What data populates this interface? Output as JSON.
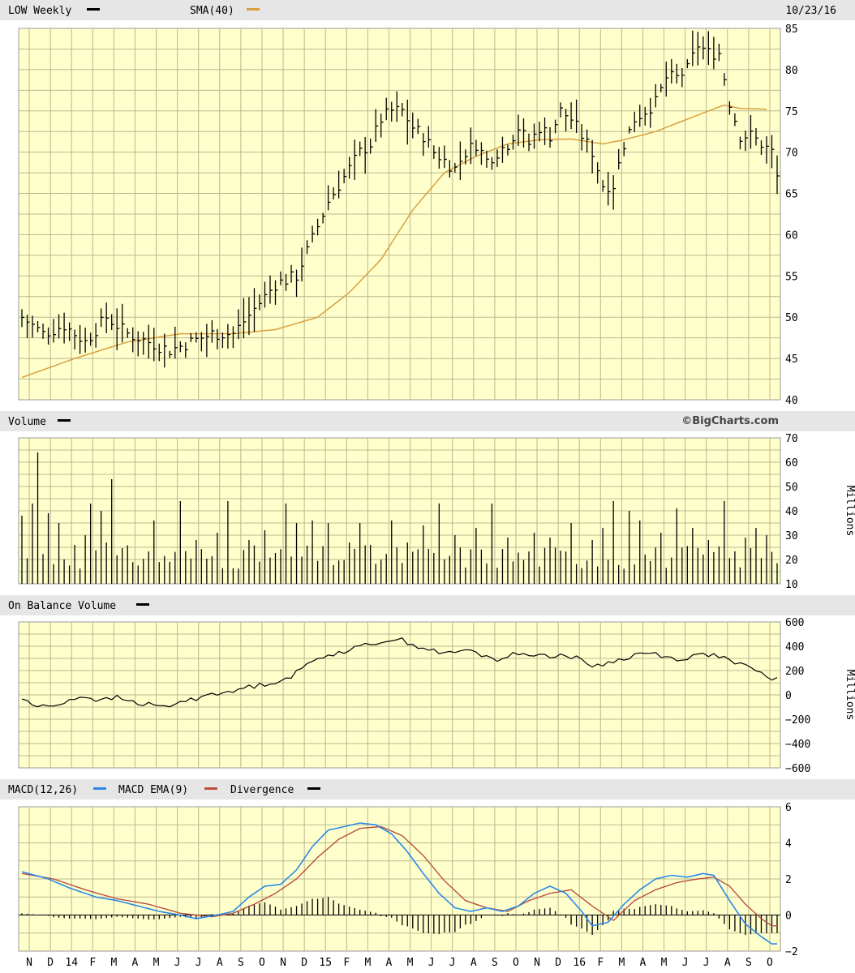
{
  "colors": {
    "panel_bg": "#ffffcc",
    "grid": "#b8b890",
    "header_bg": "#e6e6e6",
    "price": "#000000",
    "sma": "#d8a040",
    "macd": "#2a8ae6",
    "macd_ema": "#b85040",
    "divergence": "#000000"
  },
  "header": {
    "price_title": "LOW Weekly",
    "sma_label": "SMA(40)",
    "date": "10/23/16",
    "volume_title": "Volume",
    "brand": "©BigCharts.com",
    "obv_title": "On Balance Volume",
    "macd_label": "MACD(12,26)",
    "macd_ema_label": "MACD EMA(9)",
    "divergence_label": "Divergence",
    "volume_unit": "Millions",
    "obv_unit": "Millions"
  },
  "chart_data": [
    {
      "type": "line",
      "title": "LOW Weekly",
      "series_names": [
        "LOW Weekly",
        "SMA(40)"
      ],
      "ylim": [
        40,
        85
      ],
      "yticks": [
        "85",
        "80",
        "75",
        "70",
        "65",
        "60",
        "55",
        "50",
        "45",
        "40"
      ],
      "y_axis_side": "right",
      "grid": true,
      "x_month_labels": [
        "N",
        "D",
        "14",
        "F",
        "M",
        "A",
        "M",
        "J",
        "J",
        "A",
        "S",
        "O",
        "N",
        "D",
        "15",
        "F",
        "M",
        "A",
        "M",
        "J",
        "J",
        "A",
        "S",
        "O",
        "N",
        "D",
        "16",
        "F",
        "M",
        "A",
        "M",
        "J",
        "J",
        "A",
        "S",
        "O"
      ],
      "price_anchors": [
        [
          0,
          50
        ],
        [
          4,
          48
        ],
        [
          8,
          49
        ],
        [
          12,
          47
        ],
        [
          16,
          50
        ],
        [
          20,
          48
        ],
        [
          24,
          47
        ],
        [
          28,
          46
        ],
        [
          32,
          47
        ],
        [
          36,
          48
        ],
        [
          40,
          48
        ],
        [
          44,
          51
        ],
        [
          48,
          54
        ],
        [
          52,
          55
        ],
        [
          54,
          58
        ],
        [
          58,
          64
        ],
        [
          62,
          68
        ],
        [
          64,
          70
        ],
        [
          66,
          71
        ],
        [
          68,
          74
        ],
        [
          70,
          75
        ],
        [
          72,
          75
        ],
        [
          74,
          73
        ],
        [
          76,
          72
        ],
        [
          78,
          70
        ],
        [
          80,
          69
        ],
        [
          82,
          68
        ],
        [
          84,
          70
        ],
        [
          86,
          71
        ],
        [
          88,
          69
        ],
        [
          90,
          70
        ],
        [
          92,
          71
        ],
        [
          94,
          73
        ],
        [
          96,
          71
        ],
        [
          98,
          73
        ],
        [
          100,
          72
        ],
        [
          102,
          75
        ],
        [
          104,
          74
        ],
        [
          106,
          72
        ],
        [
          108,
          70
        ],
        [
          110,
          66
        ],
        [
          112,
          66
        ],
        [
          114,
          71
        ],
        [
          116,
          74
        ],
        [
          118,
          75
        ],
        [
          120,
          76
        ],
        [
          122,
          79
        ],
        [
          124,
          79
        ],
        [
          126,
          80
        ],
        [
          128,
          83
        ],
        [
          130,
          82
        ],
        [
          132,
          82
        ],
        [
          134,
          76
        ],
        [
          136,
          72
        ],
        [
          138,
          72
        ],
        [
          140,
          71
        ],
        [
          142,
          70
        ],
        [
          143,
          67
        ]
      ],
      "sma_anchors": [
        [
          0,
          42.7
        ],
        [
          10,
          45
        ],
        [
          20,
          47
        ],
        [
          30,
          48
        ],
        [
          40,
          48
        ],
        [
          48,
          48.5
        ],
        [
          56,
          50
        ],
        [
          62,
          53
        ],
        [
          68,
          57
        ],
        [
          74,
          63
        ],
        [
          80,
          67.5
        ],
        [
          86,
          69.5
        ],
        [
          92,
          71
        ],
        [
          98,
          71.5
        ],
        [
          104,
          71.6
        ],
        [
          110,
          71
        ],
        [
          114,
          71.5
        ],
        [
          120,
          72.5
        ],
        [
          126,
          74
        ],
        [
          130,
          75
        ],
        [
          133,
          75.7
        ],
        [
          136,
          75.3
        ],
        [
          141,
          75.2
        ]
      ]
    },
    {
      "type": "bar",
      "title": "Volume",
      "ylabel": "Millions",
      "ylim": [
        10,
        70
      ],
      "yticks": [
        "70",
        "60",
        "50",
        "40",
        "30",
        "20",
        "10"
      ],
      "grid": true,
      "spikes": [
        [
          0,
          38
        ],
        [
          2,
          43
        ],
        [
          3,
          64
        ],
        [
          5,
          39
        ],
        [
          7,
          35
        ],
        [
          10,
          26
        ],
        [
          12,
          30
        ],
        [
          13,
          43
        ],
        [
          15,
          40
        ],
        [
          16,
          27
        ],
        [
          17,
          53
        ],
        [
          25,
          36
        ],
        [
          30,
          44
        ],
        [
          33,
          28
        ],
        [
          37,
          31
        ],
        [
          39,
          44
        ],
        [
          43,
          28
        ],
        [
          46,
          32
        ],
        [
          50,
          43
        ],
        [
          52,
          35
        ],
        [
          55,
          36
        ],
        [
          58,
          35
        ],
        [
          62,
          27
        ],
        [
          64,
          35
        ],
        [
          66,
          26
        ],
        [
          70,
          36
        ],
        [
          73,
          27
        ],
        [
          76,
          34
        ],
        [
          79,
          43
        ],
        [
          82,
          30
        ],
        [
          86,
          33
        ],
        [
          89,
          43
        ],
        [
          92,
          29
        ],
        [
          97,
          31
        ],
        [
          100,
          29
        ],
        [
          104,
          35
        ],
        [
          108,
          28
        ],
        [
          110,
          33
        ],
        [
          112,
          44
        ],
        [
          115,
          40
        ],
        [
          117,
          36
        ],
        [
          121,
          31
        ],
        [
          124,
          41
        ],
        [
          127,
          33
        ],
        [
          130,
          28
        ],
        [
          133,
          44
        ],
        [
          137,
          29
        ],
        [
          139,
          33
        ],
        [
          141,
          30
        ]
      ],
      "base_level": 21
    },
    {
      "type": "line",
      "title": "On Balance Volume",
      "ylabel": "Millions",
      "ylim": [
        -600,
        600
      ],
      "yticks": [
        "600",
        "400",
        "200",
        "0",
        "−200",
        "−400",
        "−600"
      ],
      "grid": true,
      "anchors": [
        [
          0,
          -30
        ],
        [
          3,
          -100
        ],
        [
          6,
          -90
        ],
        [
          9,
          -40
        ],
        [
          12,
          -10
        ],
        [
          15,
          -50
        ],
        [
          18,
          -20
        ],
        [
          21,
          -60
        ],
        [
          24,
          -80
        ],
        [
          27,
          -100
        ],
        [
          30,
          -60
        ],
        [
          33,
          -30
        ],
        [
          36,
          20
        ],
        [
          39,
          10
        ],
        [
          42,
          60
        ],
        [
          45,
          80
        ],
        [
          48,
          110
        ],
        [
          51,
          150
        ],
        [
          54,
          250
        ],
        [
          57,
          320
        ],
        [
          60,
          350
        ],
        [
          63,
          380
        ],
        [
          66,
          420
        ],
        [
          69,
          450
        ],
        [
          72,
          450
        ],
        [
          75,
          400
        ],
        [
          78,
          360
        ],
        [
          81,
          340
        ],
        [
          84,
          370
        ],
        [
          87,
          330
        ],
        [
          90,
          290
        ],
        [
          93,
          330
        ],
        [
          96,
          340
        ],
        [
          99,
          320
        ],
        [
          102,
          330
        ],
        [
          105,
          300
        ],
        [
          108,
          240
        ],
        [
          111,
          260
        ],
        [
          114,
          300
        ],
        [
          117,
          340
        ],
        [
          120,
          340
        ],
        [
          123,
          300
        ],
        [
          126,
          300
        ],
        [
          129,
          340
        ],
        [
          132,
          320
        ],
        [
          135,
          260
        ],
        [
          138,
          220
        ],
        [
          141,
          150
        ],
        [
          143,
          130
        ]
      ]
    },
    {
      "type": "line",
      "title": "MACD(12,26)",
      "series_names": [
        "MACD(12,26)",
        "MACD EMA(9)",
        "Divergence"
      ],
      "ylim": [
        -2,
        6
      ],
      "yticks": [
        "6",
        "4",
        "2",
        "0",
        "−2"
      ],
      "grid": true,
      "macd_anchors": [
        [
          0,
          2.4
        ],
        [
          5,
          2.0
        ],
        [
          9,
          1.5
        ],
        [
          14,
          1.0
        ],
        [
          18,
          0.8
        ],
        [
          22,
          0.5
        ],
        [
          26,
          0.2
        ],
        [
          30,
          0.0
        ],
        [
          33,
          -0.2
        ],
        [
          37,
          0.0
        ],
        [
          40,
          0.2
        ],
        [
          43,
          1.0
        ],
        [
          46,
          1.6
        ],
        [
          49,
          1.7
        ],
        [
          52,
          2.5
        ],
        [
          55,
          3.8
        ],
        [
          58,
          4.7
        ],
        [
          61,
          4.9
        ],
        [
          64,
          5.1
        ],
        [
          67,
          5.0
        ],
        [
          70,
          4.5
        ],
        [
          73,
          3.5
        ],
        [
          76,
          2.3
        ],
        [
          79,
          1.2
        ],
        [
          82,
          0.4
        ],
        [
          85,
          0.2
        ],
        [
          88,
          0.4
        ],
        [
          91,
          0.2
        ],
        [
          94,
          0.5
        ],
        [
          97,
          1.2
        ],
        [
          100,
          1.6
        ],
        [
          103,
          1.2
        ],
        [
          106,
          0.2
        ],
        [
          108,
          -0.6
        ],
        [
          111,
          -0.4
        ],
        [
          114,
          0.6
        ],
        [
          117,
          1.4
        ],
        [
          120,
          2.0
        ],
        [
          123,
          2.2
        ],
        [
          126,
          2.1
        ],
        [
          129,
          2.3
        ],
        [
          131,
          2.2
        ],
        [
          134,
          0.8
        ],
        [
          137,
          -0.5
        ],
        [
          140,
          -1.2
        ],
        [
          142,
          -1.6
        ]
      ],
      "ema_anchors": [
        [
          0,
          2.3
        ],
        [
          6,
          2.0
        ],
        [
          12,
          1.4
        ],
        [
          18,
          0.9
        ],
        [
          24,
          0.6
        ],
        [
          30,
          0.1
        ],
        [
          36,
          -0.1
        ],
        [
          40,
          0.1
        ],
        [
          44,
          0.6
        ],
        [
          48,
          1.2
        ],
        [
          52,
          2.0
        ],
        [
          56,
          3.2
        ],
        [
          60,
          4.2
        ],
        [
          64,
          4.8
        ],
        [
          68,
          4.9
        ],
        [
          72,
          4.4
        ],
        [
          76,
          3.3
        ],
        [
          80,
          1.9
        ],
        [
          84,
          0.8
        ],
        [
          88,
          0.4
        ],
        [
          92,
          0.2
        ],
        [
          96,
          0.8
        ],
        [
          100,
          1.2
        ],
        [
          104,
          1.4
        ],
        [
          108,
          0.5
        ],
        [
          112,
          -0.3
        ],
        [
          116,
          0.8
        ],
        [
          120,
          1.4
        ],
        [
          124,
          1.8
        ],
        [
          128,
          2.0
        ],
        [
          131,
          2.1
        ],
        [
          134,
          1.6
        ],
        [
          137,
          0.6
        ],
        [
          140,
          -0.2
        ],
        [
          142,
          -0.6
        ]
      ]
    }
  ]
}
